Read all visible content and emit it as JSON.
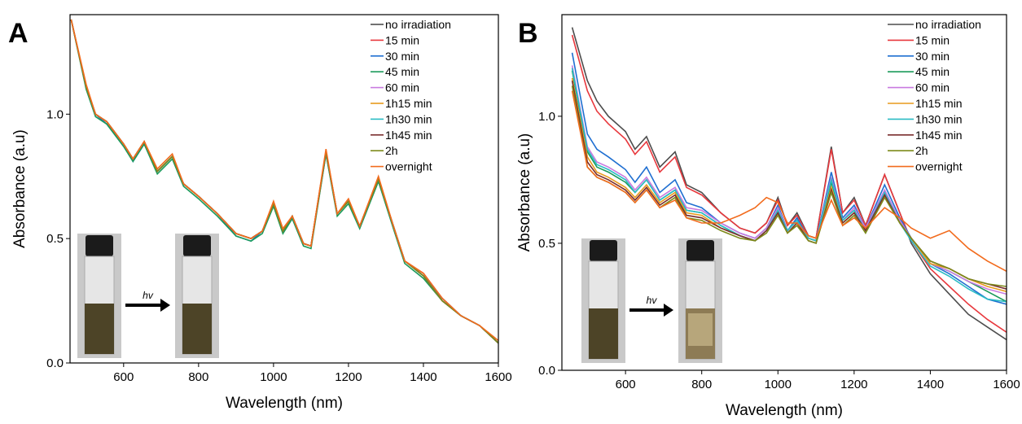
{
  "chart_data": [
    {
      "type": "line",
      "panel_label": "A",
      "inset_label": "hv",
      "x_label": "Wavelength (nm)",
      "y_label": "Absorbance (a.u)",
      "xlim": [
        457,
        1600
      ],
      "ylim": [
        0,
        1.4
      ],
      "xticks": [
        600,
        800,
        1000,
        1200,
        1400,
        1600
      ],
      "yticks": [
        {
          "value": 0,
          "label": "0.0"
        },
        {
          "value": 0.5,
          "label": "0.5"
        },
        {
          "value": 1,
          "label": "1.0"
        }
      ],
      "legend": "top-right",
      "x": [
        460,
        500,
        525,
        555,
        600,
        625,
        655,
        690,
        730,
        760,
        800,
        850,
        900,
        940,
        970,
        1000,
        1025,
        1050,
        1080,
        1100,
        1140,
        1170,
        1200,
        1230,
        1280,
        1320,
        1350,
        1400,
        1450,
        1500,
        1550,
        1600
      ],
      "series": [
        {
          "name": "no irradiation",
          "color": "#4d4d4d",
          "values": [
            1.38,
            1.11,
            1.0,
            0.97,
            0.88,
            0.82,
            0.89,
            0.77,
            0.83,
            0.72,
            0.67,
            0.6,
            0.52,
            0.5,
            0.53,
            0.64,
            0.53,
            0.59,
            0.48,
            0.47,
            0.85,
            0.6,
            0.65,
            0.55,
            0.74,
            0.55,
            0.41,
            0.35,
            0.25,
            0.19,
            0.15,
            0.08
          ]
        },
        {
          "name": "15 min",
          "color": "#e8383d",
          "values": [
            1.38,
            1.11,
            1.0,
            0.97,
            0.88,
            0.82,
            0.89,
            0.77,
            0.83,
            0.72,
            0.67,
            0.6,
            0.52,
            0.5,
            0.53,
            0.64,
            0.53,
            0.59,
            0.48,
            0.47,
            0.85,
            0.6,
            0.65,
            0.55,
            0.74,
            0.55,
            0.41,
            0.36,
            0.26,
            0.19,
            0.15,
            0.08
          ]
        },
        {
          "name": "30 min",
          "color": "#1f6fd1",
          "values": [
            1.38,
            1.11,
            1.0,
            0.96,
            0.88,
            0.81,
            0.88,
            0.77,
            0.83,
            0.72,
            0.67,
            0.6,
            0.51,
            0.49,
            0.53,
            0.64,
            0.53,
            0.58,
            0.48,
            0.47,
            0.84,
            0.6,
            0.65,
            0.55,
            0.73,
            0.55,
            0.41,
            0.35,
            0.26,
            0.19,
            0.15,
            0.08
          ]
        },
        {
          "name": "45 min",
          "color": "#1a9a5a",
          "values": [
            1.38,
            1.1,
            0.99,
            0.96,
            0.87,
            0.81,
            0.88,
            0.76,
            0.82,
            0.71,
            0.66,
            0.59,
            0.51,
            0.49,
            0.52,
            0.63,
            0.52,
            0.58,
            0.47,
            0.46,
            0.84,
            0.59,
            0.64,
            0.54,
            0.73,
            0.54,
            0.4,
            0.34,
            0.25,
            0.19,
            0.15,
            0.08
          ]
        },
        {
          "name": "60 min",
          "color": "#c97ae0",
          "values": [
            1.38,
            1.11,
            1.0,
            0.97,
            0.88,
            0.82,
            0.89,
            0.77,
            0.83,
            0.72,
            0.67,
            0.6,
            0.52,
            0.5,
            0.53,
            0.64,
            0.53,
            0.59,
            0.48,
            0.47,
            0.85,
            0.6,
            0.65,
            0.55,
            0.74,
            0.55,
            0.41,
            0.35,
            0.25,
            0.19,
            0.15,
            0.08
          ]
        },
        {
          "name": "1h15 min",
          "color": "#e89a1c",
          "values": [
            1.38,
            1.11,
            1.0,
            0.97,
            0.88,
            0.82,
            0.89,
            0.77,
            0.83,
            0.72,
            0.67,
            0.6,
            0.52,
            0.5,
            0.53,
            0.64,
            0.53,
            0.59,
            0.48,
            0.47,
            0.85,
            0.6,
            0.65,
            0.55,
            0.74,
            0.55,
            0.41,
            0.35,
            0.25,
            0.19,
            0.15,
            0.08
          ]
        },
        {
          "name": "1h30 min",
          "color": "#2bbcc4",
          "values": [
            1.38,
            1.11,
            1.0,
            0.97,
            0.88,
            0.82,
            0.89,
            0.77,
            0.83,
            0.72,
            0.67,
            0.6,
            0.52,
            0.5,
            0.53,
            0.64,
            0.53,
            0.59,
            0.48,
            0.47,
            0.85,
            0.6,
            0.65,
            0.55,
            0.74,
            0.55,
            0.41,
            0.35,
            0.25,
            0.19,
            0.15,
            0.08
          ]
        },
        {
          "name": "1h45 min",
          "color": "#7a2e2e",
          "values": [
            1.38,
            1.11,
            1.0,
            0.97,
            0.88,
            0.82,
            0.89,
            0.77,
            0.83,
            0.72,
            0.67,
            0.6,
            0.52,
            0.5,
            0.53,
            0.64,
            0.53,
            0.59,
            0.48,
            0.47,
            0.85,
            0.6,
            0.65,
            0.55,
            0.74,
            0.55,
            0.41,
            0.35,
            0.25,
            0.19,
            0.15,
            0.08
          ]
        },
        {
          "name": "2h",
          "color": "#7d8a1a",
          "values": [
            1.38,
            1.11,
            1.0,
            0.97,
            0.88,
            0.82,
            0.89,
            0.77,
            0.83,
            0.72,
            0.67,
            0.6,
            0.52,
            0.5,
            0.53,
            0.64,
            0.53,
            0.59,
            0.48,
            0.47,
            0.85,
            0.6,
            0.65,
            0.55,
            0.74,
            0.55,
            0.41,
            0.35,
            0.25,
            0.19,
            0.15,
            0.08
          ]
        },
        {
          "name": "overnight",
          "color": "#f26b1d",
          "values": [
            1.38,
            1.12,
            1.0,
            0.97,
            0.88,
            0.82,
            0.89,
            0.78,
            0.84,
            0.72,
            0.67,
            0.6,
            0.52,
            0.5,
            0.53,
            0.65,
            0.54,
            0.59,
            0.48,
            0.47,
            0.86,
            0.6,
            0.66,
            0.55,
            0.75,
            0.55,
            0.41,
            0.36,
            0.26,
            0.19,
            0.15,
            0.09
          ]
        }
      ]
    },
    {
      "type": "line",
      "panel_label": "B",
      "inset_label": "hv",
      "x_label": "Wavelength (nm)",
      "y_label": "Absorbance (a.u)",
      "xlim": [
        433,
        1600
      ],
      "ylim": [
        0,
        1.4
      ],
      "xticks": [
        600,
        800,
        1000,
        1200,
        1400,
        1600
      ],
      "yticks": [
        {
          "value": 0,
          "label": "0.0"
        },
        {
          "value": 0.5,
          "label": "0.5"
        },
        {
          "value": 1,
          "label": "1.0"
        }
      ],
      "legend": "top-right",
      "x": [
        460,
        500,
        525,
        555,
        600,
        625,
        655,
        690,
        730,
        760,
        800,
        850,
        900,
        940,
        970,
        1000,
        1025,
        1050,
        1080,
        1100,
        1140,
        1170,
        1200,
        1230,
        1280,
        1320,
        1350,
        1400,
        1450,
        1500,
        1550,
        1600
      ],
      "series": [
        {
          "name": "no irradiation",
          "color": "#4d4d4d",
          "values": [
            1.35,
            1.14,
            1.06,
            1.0,
            0.94,
            0.87,
            0.92,
            0.8,
            0.86,
            0.73,
            0.7,
            0.62,
            0.56,
            0.54,
            0.58,
            0.68,
            0.57,
            0.62,
            0.53,
            0.52,
            0.88,
            0.62,
            0.68,
            0.57,
            0.77,
            0.62,
            0.5,
            0.38,
            0.3,
            0.22,
            0.17,
            0.12
          ]
        },
        {
          "name": "15 min",
          "color": "#e8383d",
          "values": [
            1.32,
            1.1,
            1.02,
            0.97,
            0.91,
            0.85,
            0.9,
            0.78,
            0.84,
            0.72,
            0.69,
            0.62,
            0.56,
            0.54,
            0.58,
            0.67,
            0.57,
            0.61,
            0.53,
            0.52,
            0.87,
            0.62,
            0.67,
            0.57,
            0.77,
            0.62,
            0.51,
            0.4,
            0.33,
            0.26,
            0.2,
            0.15
          ]
        },
        {
          "name": "30 min",
          "color": "#1f6fd1",
          "values": [
            1.25,
            0.93,
            0.87,
            0.84,
            0.79,
            0.74,
            0.8,
            0.7,
            0.75,
            0.66,
            0.64,
            0.58,
            0.54,
            0.52,
            0.56,
            0.65,
            0.55,
            0.6,
            0.52,
            0.51,
            0.78,
            0.6,
            0.65,
            0.56,
            0.73,
            0.6,
            0.52,
            0.42,
            0.38,
            0.33,
            0.28,
            0.26
          ]
        },
        {
          "name": "45 min",
          "color": "#1a9a5a",
          "values": [
            1.18,
            0.86,
            0.8,
            0.78,
            0.74,
            0.7,
            0.75,
            0.67,
            0.71,
            0.63,
            0.62,
            0.57,
            0.53,
            0.51,
            0.55,
            0.63,
            0.55,
            0.59,
            0.52,
            0.51,
            0.74,
            0.59,
            0.63,
            0.55,
            0.7,
            0.59,
            0.52,
            0.42,
            0.39,
            0.35,
            0.31,
            0.27
          ]
        },
        {
          "name": "60 min",
          "color": "#c97ae0",
          "values": [
            1.2,
            0.88,
            0.82,
            0.8,
            0.76,
            0.71,
            0.76,
            0.68,
            0.72,
            0.64,
            0.63,
            0.58,
            0.54,
            0.52,
            0.56,
            0.64,
            0.55,
            0.59,
            0.52,
            0.51,
            0.76,
            0.59,
            0.64,
            0.56,
            0.71,
            0.59,
            0.52,
            0.42,
            0.39,
            0.35,
            0.32,
            0.3
          ]
        },
        {
          "name": "1h15 min",
          "color": "#e89a1c",
          "values": [
            1.15,
            0.84,
            0.78,
            0.76,
            0.72,
            0.68,
            0.73,
            0.66,
            0.7,
            0.62,
            0.61,
            0.56,
            0.53,
            0.51,
            0.55,
            0.62,
            0.54,
            0.58,
            0.52,
            0.51,
            0.72,
            0.58,
            0.62,
            0.55,
            0.69,
            0.58,
            0.52,
            0.42,
            0.4,
            0.36,
            0.33,
            0.31
          ]
        },
        {
          "name": "1h30 min",
          "color": "#2bbcc4",
          "values": [
            1.19,
            0.87,
            0.81,
            0.79,
            0.75,
            0.7,
            0.75,
            0.67,
            0.71,
            0.63,
            0.62,
            0.57,
            0.53,
            0.51,
            0.55,
            0.63,
            0.55,
            0.59,
            0.52,
            0.51,
            0.75,
            0.59,
            0.63,
            0.55,
            0.7,
            0.58,
            0.51,
            0.41,
            0.37,
            0.32,
            0.28,
            0.27
          ]
        },
        {
          "name": "1h45 min",
          "color": "#7a2e2e",
          "values": [
            1.14,
            0.82,
            0.77,
            0.75,
            0.71,
            0.67,
            0.72,
            0.65,
            0.69,
            0.61,
            0.6,
            0.56,
            0.53,
            0.51,
            0.55,
            0.62,
            0.54,
            0.58,
            0.51,
            0.5,
            0.71,
            0.58,
            0.62,
            0.55,
            0.69,
            0.58,
            0.52,
            0.43,
            0.4,
            0.36,
            0.34,
            0.32
          ]
        },
        {
          "name": "2h",
          "color": "#7d8a1a",
          "values": [
            1.12,
            0.8,
            0.76,
            0.74,
            0.7,
            0.66,
            0.71,
            0.64,
            0.68,
            0.6,
            0.59,
            0.55,
            0.52,
            0.51,
            0.54,
            0.61,
            0.54,
            0.57,
            0.51,
            0.5,
            0.7,
            0.57,
            0.61,
            0.54,
            0.68,
            0.58,
            0.52,
            0.43,
            0.4,
            0.36,
            0.34,
            0.33
          ]
        },
        {
          "name": "overnight",
          "color": "#f26b1d",
          "values": [
            1.1,
            0.8,
            0.76,
            0.74,
            0.7,
            0.66,
            0.71,
            0.64,
            0.67,
            0.6,
            0.58,
            0.58,
            0.61,
            0.64,
            0.68,
            0.66,
            0.58,
            0.58,
            0.53,
            0.52,
            0.67,
            0.57,
            0.6,
            0.56,
            0.64,
            0.6,
            0.56,
            0.52,
            0.55,
            0.48,
            0.43,
            0.39
          ]
        }
      ]
    }
  ]
}
